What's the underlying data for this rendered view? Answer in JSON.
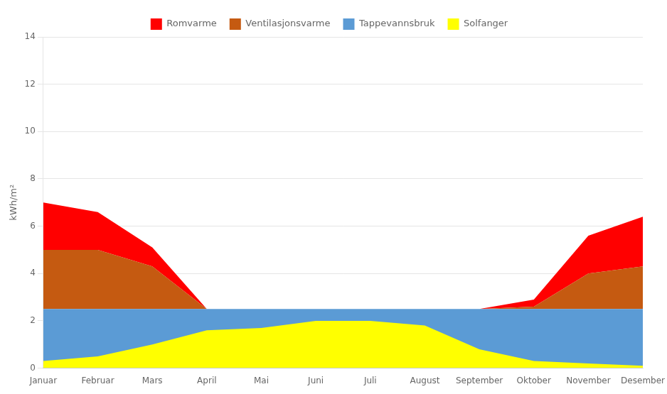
{
  "chart_data": {
    "type": "area",
    "categories": [
      "Januar",
      "Februar",
      "Mars",
      "April",
      "Mai",
      "Juni",
      "Juli",
      "August",
      "September",
      "Oktober",
      "November",
      "Desember"
    ],
    "series": [
      {
        "name": "Romvarme",
        "color": "#FF0000",
        "values": [
          2.0,
          1.6,
          0.8,
          0.0,
          0.0,
          0.0,
          0.0,
          0.0,
          0.0,
          0.3,
          1.6,
          2.1
        ]
      },
      {
        "name": "Ventilasjonsvarme",
        "color": "#C55A11",
        "values": [
          2.5,
          2.5,
          1.8,
          0.0,
          0.0,
          0.0,
          0.0,
          0.0,
          0.0,
          0.1,
          1.5,
          1.8
        ]
      },
      {
        "name": "Tappevannsbruk",
        "color": "#5B9BD5",
        "values": [
          2.5,
          2.5,
          2.5,
          2.5,
          2.5,
          2.5,
          2.5,
          2.5,
          2.5,
          2.5,
          2.5,
          2.5
        ]
      },
      {
        "name": "Solfanger",
        "color": "#FFFF00",
        "stacked": false,
        "values": [
          0.3,
          0.5,
          1.0,
          1.6,
          1.7,
          2.0,
          2.0,
          1.8,
          0.8,
          0.3,
          0.2,
          0.1
        ]
      }
    ],
    "stacked": true,
    "ylabel": "kWh/m²",
    "ylim": [
      0,
      14
    ],
    "yticks": [
      0,
      2,
      4,
      6,
      8,
      10,
      12,
      14
    ],
    "grid": true,
    "legend": "top"
  }
}
